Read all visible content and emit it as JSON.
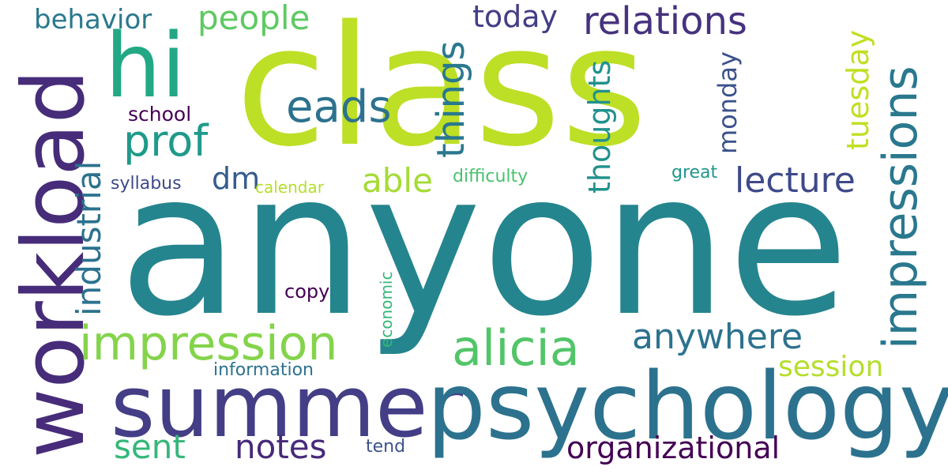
{
  "word_cloud": {
    "words": [
      {
        "id": "class",
        "text": "class",
        "color": "#bddf26"
      },
      {
        "id": "anyone",
        "text": "anyone",
        "color": "#25858e"
      },
      {
        "id": "workload",
        "text": "workload",
        "color": "#472c7a"
      },
      {
        "id": "summer",
        "text": "summer",
        "color": "#433e85"
      },
      {
        "id": "psychology",
        "text": "psychology",
        "color": "#2c728e"
      },
      {
        "id": "hi",
        "text": "hi",
        "color": "#22a884"
      },
      {
        "id": "impression",
        "text": "impression",
        "color": "#84d44b"
      },
      {
        "id": "alicia",
        "text": "alicia",
        "color": "#52c569"
      },
      {
        "id": "impressions",
        "text": "impressions",
        "color": "#2a788e"
      },
      {
        "id": "relations",
        "text": "relations",
        "color": "#46327e"
      },
      {
        "id": "eads",
        "text": "eads",
        "color": "#2c728e"
      },
      {
        "id": "prof",
        "text": "prof",
        "color": "#1f9a8a"
      },
      {
        "id": "things",
        "text": "things",
        "color": "#2a788e"
      },
      {
        "id": "people",
        "text": "people",
        "color": "#5ec962"
      },
      {
        "id": "behavior",
        "text": "behavior",
        "color": "#2a788e"
      },
      {
        "id": "today",
        "text": "today",
        "color": "#433e85"
      },
      {
        "id": "thoughts",
        "text": "thoughts",
        "color": "#21918c"
      },
      {
        "id": "monday",
        "text": "monday",
        "color": "#3b528b"
      },
      {
        "id": "tuesday",
        "text": "tuesday",
        "color": "#c2df23"
      },
      {
        "id": "able",
        "text": "able",
        "color": "#a5db36"
      },
      {
        "id": "lecture",
        "text": "lecture",
        "color": "#3e4989"
      },
      {
        "id": "industrial",
        "text": "industrial",
        "color": "#2c728e"
      },
      {
        "id": "dm",
        "text": "dm",
        "color": "#365c8d"
      },
      {
        "id": "anywhere",
        "text": "anywhere",
        "color": "#2c728e"
      },
      {
        "id": "session",
        "text": "session",
        "color": "#b5de2b"
      },
      {
        "id": "organizational",
        "text": "organizational",
        "color": "#440154"
      },
      {
        "id": "notes",
        "text": "notes",
        "color": "#472a7a"
      },
      {
        "id": "sent",
        "text": "sent",
        "color": "#35b779"
      },
      {
        "id": "school",
        "text": "school",
        "color": "#440154"
      },
      {
        "id": "syllabus",
        "text": "syllabus",
        "color": "#3e4a89"
      },
      {
        "id": "calendar",
        "text": "calendar",
        "color": "#b5de2b"
      },
      {
        "id": "difficulty",
        "text": "difficulty",
        "color": "#4ac16d"
      },
      {
        "id": "great",
        "text": "great",
        "color": "#1f968b"
      },
      {
        "id": "copy",
        "text": "copy",
        "color": "#440154"
      },
      {
        "id": "economic",
        "text": "economic",
        "color": "#35b779"
      },
      {
        "id": "information",
        "text": "information",
        "color": "#2c728e"
      },
      {
        "id": "tend",
        "text": "tend",
        "color": "#3b528b"
      }
    ]
  }
}
